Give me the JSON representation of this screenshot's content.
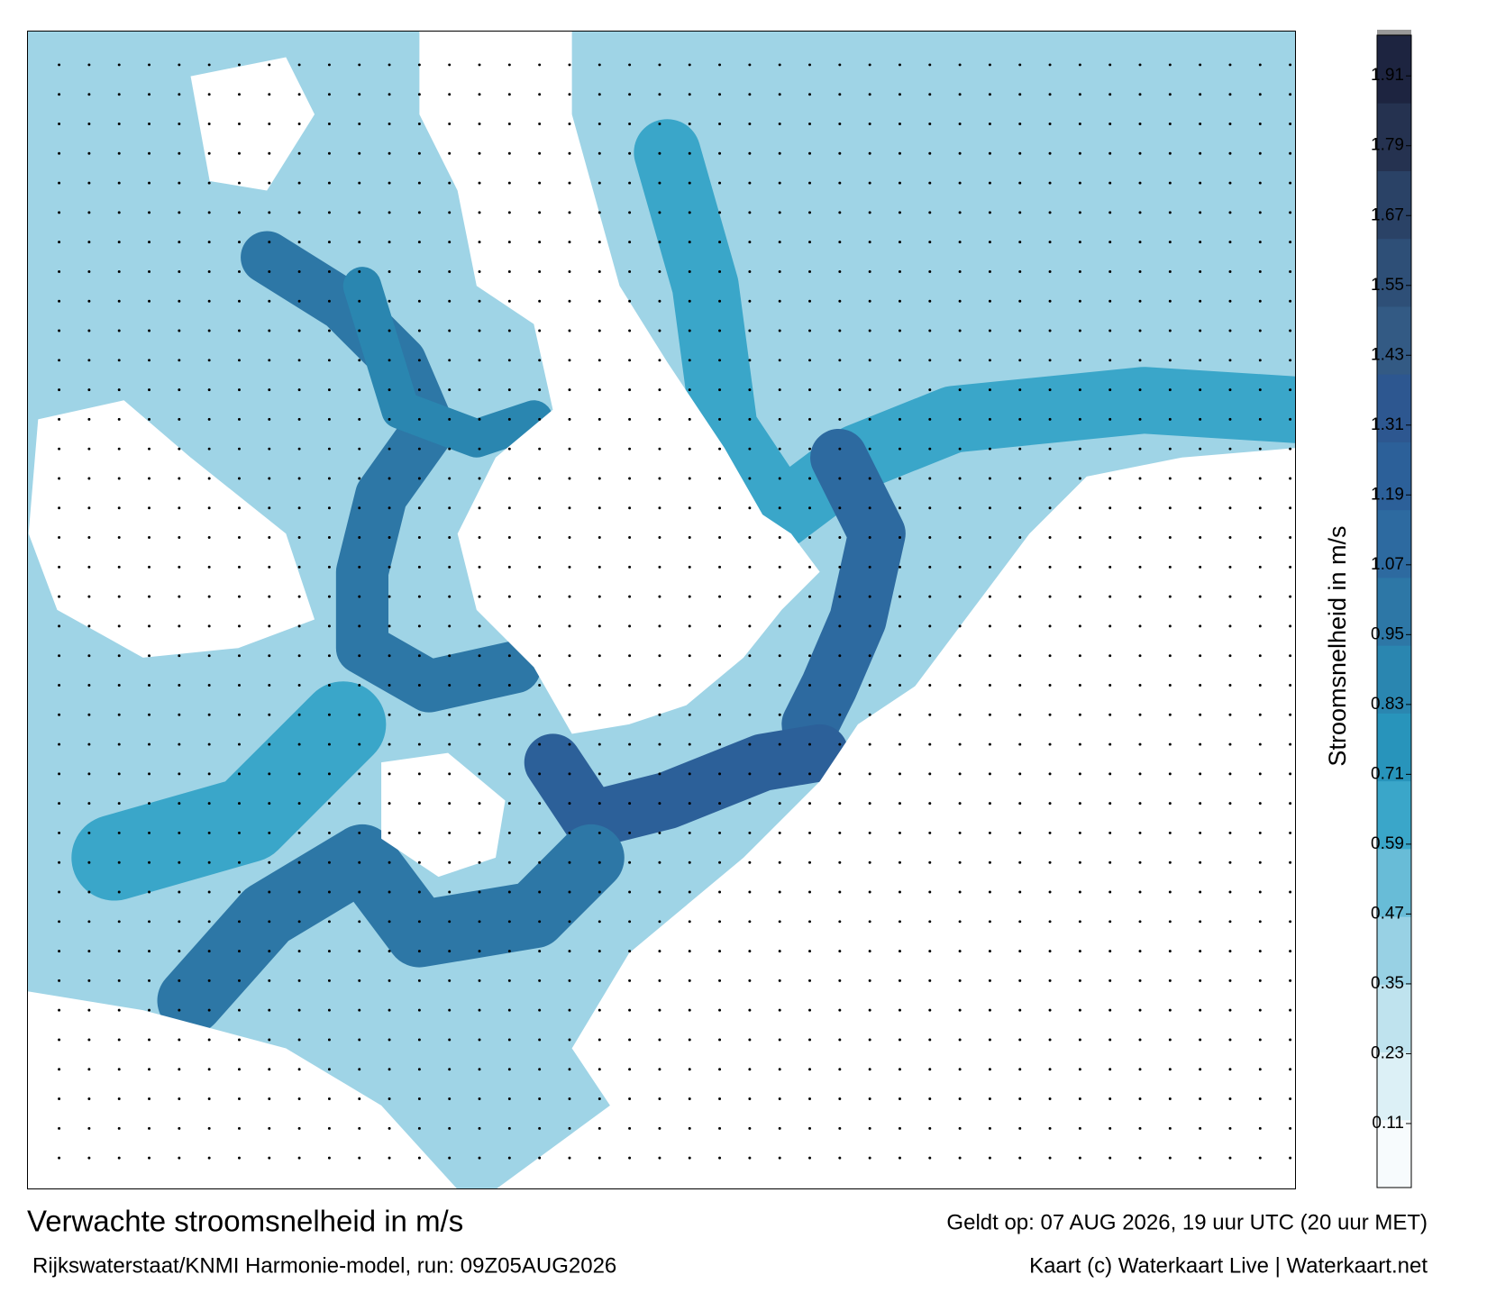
{
  "title": "Verwachte stroomsnelheid in m/s",
  "subtitle": "Rijkswaterstaat/KNMI Harmonie-model, run: 09Z05AUG2026",
  "valid_time": "Geldt op: 07 AUG 2026, 19 uur UTC (20 uur MET)",
  "credit": "Kaart (c) Waterkaart Live | Waterkaart.net",
  "colorbar": {
    "label": "Stroomsnelheid in m/s",
    "ylim": [
      0,
      1.98
    ],
    "yticks": [
      0.11,
      0.23,
      0.35,
      0.47,
      0.59,
      0.71,
      0.83,
      0.95,
      1.07,
      1.19,
      1.31,
      1.43,
      1.55,
      1.67,
      1.79,
      1.91
    ],
    "colors": [
      "#f7fbfd",
      "#dcf0f6",
      "#bfe3ee",
      "#98d1e4",
      "#68bcd7",
      "#3aa6c9",
      "#2894bb",
      "#2a86b0",
      "#2d77a6",
      "#2d6aa0",
      "#2c6099",
      "#2d5790",
      "#335a84",
      "#2e4f77",
      "#2a4266",
      "#253250",
      "#1d2440"
    ]
  }
}
